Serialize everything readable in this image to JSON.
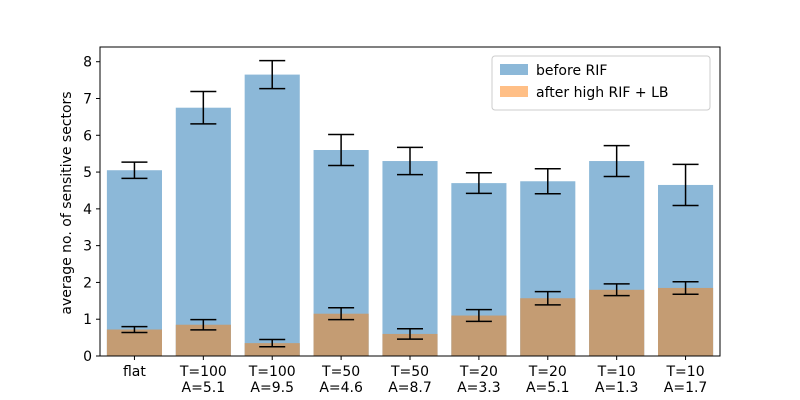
{
  "chart_data": {
    "type": "bar",
    "title": "",
    "xlabel": "",
    "ylabel": "average no. of sensitive sectors",
    "ylim": [
      0,
      8.4
    ],
    "yticks": [
      0,
      1,
      2,
      3,
      4,
      5,
      6,
      7,
      8
    ],
    "grid": false,
    "legend_position": "top-right",
    "categories": [
      [
        "flat"
      ],
      [
        "T=100",
        "A=5.1"
      ],
      [
        "T=100",
        "A=9.5"
      ],
      [
        "T=50",
        "A=4.6"
      ],
      [
        "T=50",
        "A=8.7"
      ],
      [
        "T=20",
        "A=3.3"
      ],
      [
        "T=20",
        "A=5.1"
      ],
      [
        "T=10",
        "A=1.3"
      ],
      [
        "T=10",
        "A=1.7"
      ]
    ],
    "series": [
      {
        "name": "before RIF",
        "color": "#8cb8d8",
        "values": [
          5.05,
          6.75,
          7.65,
          5.6,
          5.3,
          4.7,
          4.75,
          5.3,
          4.65
        ],
        "errors": [
          0.22,
          0.44,
          0.38,
          0.42,
          0.37,
          0.28,
          0.34,
          0.42,
          0.56
        ]
      },
      {
        "name": "after high RIF + LB",
        "color": "#ffbf86",
        "overlap_color": "#c49c73",
        "values": [
          0.72,
          0.85,
          0.35,
          1.15,
          0.6,
          1.1,
          1.57,
          1.8,
          1.85
        ],
        "errors": [
          0.08,
          0.14,
          0.1,
          0.16,
          0.14,
          0.16,
          0.18,
          0.16,
          0.17
        ]
      }
    ]
  }
}
